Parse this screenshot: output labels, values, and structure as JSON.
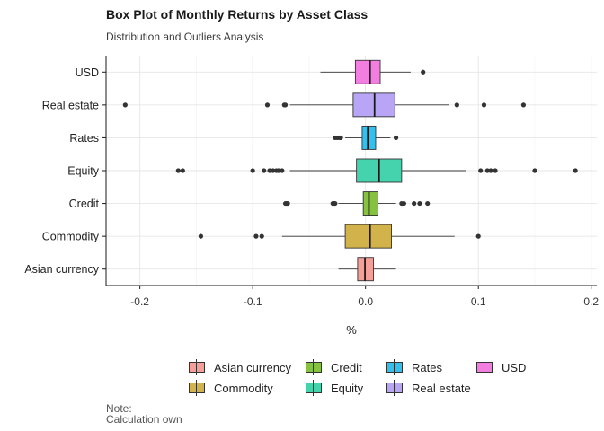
{
  "title": "Box Plot of Monthly Returns by Asset Class",
  "subtitle": "Distribution and Outliers Analysis",
  "note_line1": "Note:",
  "note_line2": "Calculation own",
  "chart_data": {
    "type": "boxplot",
    "orientation": "horizontal",
    "title": "Box Plot of Monthly Returns by Asset Class",
    "subtitle": "Distribution and Outliers Analysis",
    "xlabel": "%",
    "ylabel": "",
    "xlim": [
      -0.23,
      0.205
    ],
    "x_ticks": [
      -0.2,
      -0.1,
      0.0,
      0.1,
      0.2
    ],
    "x_tick_labels": [
      "-0.2",
      "-0.1",
      "0.0",
      "0.1",
      "0.2"
    ],
    "grid": true,
    "legend_position": "bottom",
    "categories": [
      "USD",
      "Real estate",
      "Rates",
      "Equity",
      "Credit",
      "Commodity",
      "Asian currency"
    ],
    "series": [
      {
        "name": "USD",
        "color": "#f27ee0",
        "whisker_low": -0.04,
        "q1": -0.009,
        "median": 0.004,
        "q3": 0.013,
        "whisker_high": 0.04,
        "outliers": [
          0.051
        ]
      },
      {
        "name": "Real estate",
        "color": "#b9a5f6",
        "whisker_low": -0.067,
        "q1": -0.011,
        "median": 0.008,
        "q3": 0.026,
        "whisker_high": 0.074,
        "outliers": [
          -0.213,
          -0.087,
          -0.072,
          -0.071,
          0.081,
          0.105,
          0.14
        ]
      },
      {
        "name": "Rates",
        "color": "#35bfec",
        "whisker_low": -0.018,
        "q1": -0.003,
        "median": 0.002,
        "q3": 0.009,
        "whisker_high": 0.022,
        "outliers": [
          -0.027,
          -0.025,
          -0.023,
          -0.022,
          0.027
        ]
      },
      {
        "name": "Equity",
        "color": "#45d3ad",
        "whisker_low": -0.067,
        "q1": -0.008,
        "median": 0.012,
        "q3": 0.032,
        "whisker_high": 0.089,
        "outliers": [
          -0.166,
          -0.162,
          -0.1,
          -0.09,
          -0.085,
          -0.082,
          -0.079,
          -0.077,
          -0.074,
          0.102,
          0.108,
          0.111,
          0.115,
          0.15,
          0.186
        ]
      },
      {
        "name": "Credit",
        "color": "#86c13f",
        "whisker_low": -0.024,
        "q1": -0.002,
        "median": 0.003,
        "q3": 0.011,
        "whisker_high": 0.027,
        "outliers": [
          -0.071,
          -0.07,
          -0.069,
          -0.029,
          -0.028,
          -0.027,
          0.032,
          0.034,
          0.043,
          0.048,
          0.055
        ]
      },
      {
        "name": "Commodity",
        "color": "#d2b24a",
        "whisker_low": -0.074,
        "q1": -0.018,
        "median": 0.004,
        "q3": 0.023,
        "whisker_high": 0.079,
        "outliers": [
          -0.146,
          -0.097,
          -0.092,
          0.1
        ]
      },
      {
        "name": "Asian currency",
        "color": "#f59f98",
        "whisker_low": -0.024,
        "q1": -0.007,
        "median": -0.0005,
        "q3": 0.007,
        "whisker_high": 0.027,
        "outliers": []
      }
    ],
    "legend_entries": [
      {
        "label": "Asian currency",
        "color": "#f59f98"
      },
      {
        "label": "Commodity",
        "color": "#d2b24a"
      },
      {
        "label": "Credit",
        "color": "#86c13f"
      },
      {
        "label": "Equity",
        "color": "#45d3ad"
      },
      {
        "label": "Rates",
        "color": "#35bfec"
      },
      {
        "label": "Real estate",
        "color": "#b9a5f6"
      },
      {
        "label": "USD",
        "color": "#f27ee0"
      }
    ]
  }
}
